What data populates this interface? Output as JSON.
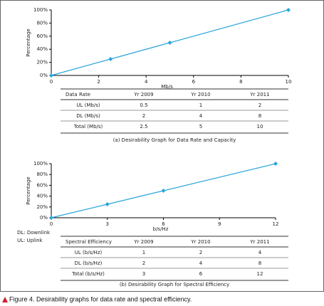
{
  "chart_data": [
    {
      "type": "line",
      "x_label": "Mb/s",
      "y_label": "Percentage",
      "color": "#2aa5dc",
      "x": [
        0,
        2.5,
        5,
        10
      ],
      "values": [
        0,
        25,
        50,
        100
      ],
      "xlim": [
        0,
        10
      ],
      "xticks": [
        0,
        2,
        4,
        6,
        8,
        10
      ],
      "ylim": [
        0,
        100
      ],
      "yticks": [
        {
          "value": 0,
          "label": "0%"
        },
        {
          "value": 20,
          "label": "20%"
        },
        {
          "value": 40,
          "label": "40%"
        },
        {
          "value": 60,
          "label": "60%"
        },
        {
          "value": 80,
          "label": "80%"
        },
        {
          "value": 100,
          "label": "100%"
        }
      ]
    },
    {
      "type": "line",
      "x_label": "b/s/Hz",
      "y_label": "Percentage",
      "color": "#2aa5dc",
      "x": [
        0,
        3,
        6,
        12
      ],
      "values": [
        0,
        25,
        50,
        100
      ],
      "xlim": [
        0,
        12
      ],
      "xticks": [
        0,
        3,
        6,
        9,
        12
      ],
      "ylim": [
        0,
        100
      ],
      "yticks": [
        {
          "value": 0,
          "label": "0%"
        },
        {
          "value": 20,
          "label": "20%"
        },
        {
          "value": 40,
          "label": "40%"
        },
        {
          "value": 60,
          "label": "60%"
        },
        {
          "value": 80,
          "label": "80%"
        },
        {
          "value": 100,
          "label": "100%"
        }
      ]
    }
  ],
  "tables": [
    {
      "header": [
        "Data Rate",
        "Yr 2009",
        "Yr 2010",
        "Yr 2011"
      ],
      "rows": [
        [
          "UL (Mb/s)",
          0.5,
          1,
          2
        ],
        [
          "DL (Mb/s)",
          2,
          4,
          8
        ],
        [
          "Total (Mb/s)",
          2.5,
          5,
          10
        ]
      ],
      "caption": "(a) Desirability Graph for Data Rate and Capacity"
    },
    {
      "header": [
        "Spectral Efficiency",
        "Yr 2009",
        "Yr 2010",
        "Yr 2011"
      ],
      "rows": [
        [
          "UL (b/s/Hz)",
          1,
          2,
          4
        ],
        [
          "DL (b/s/Hz)",
          2,
          4,
          8
        ],
        [
          "Total (b/s/Hz)",
          3,
          6,
          12
        ]
      ],
      "caption": "(b) Desirability Graph for Spectral Efficiency"
    }
  ],
  "notes": [
    "DL: Downlink",
    "UL: Uplink"
  ],
  "figure_caption": "Figure 4. Desirability graphs for data rate and spectral efficiency."
}
